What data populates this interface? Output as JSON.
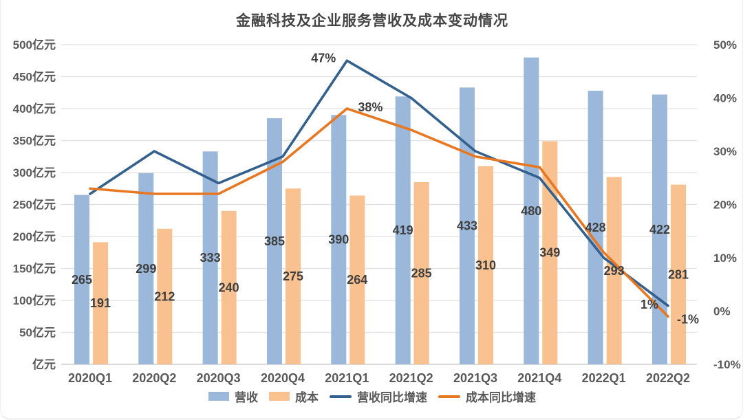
{
  "chart_data": {
    "type": "bar+line",
    "title": "金融科技及企业服务营收及成本变动情况",
    "categories": [
      "2020Q1",
      "2020Q2",
      "2020Q3",
      "2020Q4",
      "2021Q1",
      "2021Q2",
      "2021Q3",
      "2021Q4",
      "2022Q1",
      "2022Q2"
    ],
    "series": [
      {
        "id": "revenue",
        "name": "营收",
        "type": "bar",
        "axis": "left",
        "color": "#9bb7da",
        "values": [
          265,
          299,
          333,
          385,
          390,
          419,
          433,
          480,
          428,
          422
        ]
      },
      {
        "id": "cost",
        "name": "成本",
        "type": "bar",
        "axis": "left",
        "color": "#f9c18f",
        "values": [
          191,
          212,
          240,
          275,
          264,
          285,
          310,
          349,
          293,
          281
        ]
      },
      {
        "id": "revenue-growth",
        "name": "营收同比增速",
        "type": "line",
        "axis": "right",
        "color": "#33608c",
        "values": [
          22,
          30,
          24,
          29,
          47,
          40,
          30,
          25,
          10,
          1
        ]
      },
      {
        "id": "cost-growth",
        "name": "成本同比增速",
        "type": "line",
        "axis": "right",
        "color": "#e87722",
        "values": [
          23,
          22,
          22,
          28,
          38,
          34,
          29,
          27,
          11,
          -1
        ]
      }
    ],
    "left_axis": {
      "unit": "亿元",
      "min": 0,
      "max": 500,
      "step": 50,
      "ticks": [
        "500亿元",
        "450亿元",
        "400亿元",
        "350亿元",
        "300亿元",
        "250亿元",
        "200亿元",
        "150亿元",
        "100亿元",
        "50亿元",
        "亿元"
      ]
    },
    "right_axis": {
      "unit": "%",
      "min": -10,
      "max": 50,
      "step": 10,
      "ticks": [
        "50%",
        "40%",
        "30%",
        "20%",
        "10%",
        "0%",
        "-10%"
      ]
    },
    "annotations": [
      {
        "text": "47%",
        "series": "revenue-growth",
        "category_index": 4
      },
      {
        "text": "38%",
        "series": "cost-growth",
        "category_index": 4
      },
      {
        "text": "1%",
        "series": "revenue-growth",
        "category_index": 9
      },
      {
        "text": "-1%",
        "series": "cost-growth",
        "category_index": 9
      }
    ],
    "grid": true,
    "legend_position": "bottom"
  },
  "colors": {
    "title_text": "#454545",
    "axis_text": "#595959",
    "data_label_text": "#3f3f3f",
    "gridline": "#e0e0e0",
    "baseline": "#c4c4c4",
    "background": "#ffffff"
  }
}
